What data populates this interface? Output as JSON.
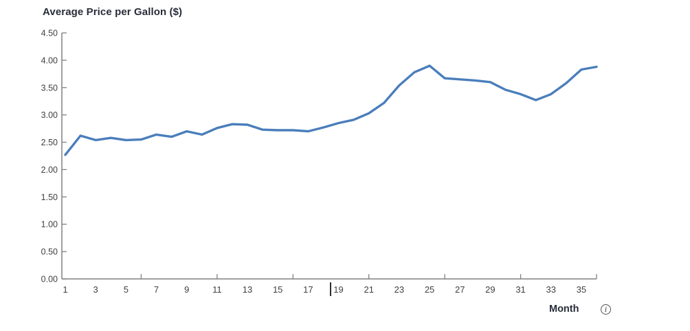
{
  "chart": {
    "title": "Average Price per Gallon ($)",
    "xlabel": "Month",
    "info_icon_glyph": "i"
  },
  "chart_data": {
    "type": "line",
    "title": "Average Price per Gallon ($)",
    "xlabel": "Month",
    "ylabel": "Average Price per Gallon ($)",
    "x": [
      1,
      2,
      3,
      4,
      5,
      6,
      7,
      8,
      9,
      10,
      11,
      12,
      13,
      14,
      15,
      16,
      17,
      18,
      19,
      20,
      21,
      22,
      23,
      24,
      25,
      26,
      27,
      28,
      29,
      30,
      31,
      32,
      33,
      34,
      35,
      36
    ],
    "values": [
      2.27,
      2.62,
      2.54,
      2.58,
      2.54,
      2.55,
      2.64,
      2.6,
      2.7,
      2.64,
      2.76,
      2.83,
      2.82,
      2.73,
      2.72,
      2.72,
      2.7,
      2.77,
      2.85,
      2.91,
      3.03,
      3.22,
      3.54,
      3.78,
      3.9,
      3.67,
      3.65,
      3.63,
      3.6,
      3.46,
      3.38,
      3.27,
      3.38,
      3.58,
      3.83,
      3.88
    ],
    "xlim": [
      1,
      36
    ],
    "ylim": [
      0,
      4.5
    ],
    "ytick_labels": [
      "0.00",
      "0.50",
      "1.00",
      "1.50",
      "2.00",
      "2.50",
      "3.00",
      "3.50",
      "4.00",
      "4.50"
    ],
    "ytick_values": [
      0,
      0.5,
      1.0,
      1.5,
      2.0,
      2.5,
      3.0,
      3.5,
      4.0,
      4.5
    ],
    "xtick_labels": [
      "1",
      "3",
      "5",
      "7",
      "9",
      "11",
      "13",
      "15",
      "17",
      "19",
      "21",
      "23",
      "25",
      "27",
      "29",
      "31",
      "33",
      "35"
    ],
    "xtick_label_months": [
      1,
      3,
      5,
      7,
      9,
      11,
      13,
      15,
      17,
      19,
      21,
      23,
      25,
      27,
      29,
      31,
      33,
      35
    ],
    "xtick_mark_months": [
      6,
      11,
      16,
      21,
      26,
      31,
      36
    ],
    "grid": false,
    "legend": "none",
    "colors": {
      "line": "#4a7ebb",
      "axis": "#808080",
      "tick_label": "#404040",
      "title": "#272d38"
    }
  }
}
